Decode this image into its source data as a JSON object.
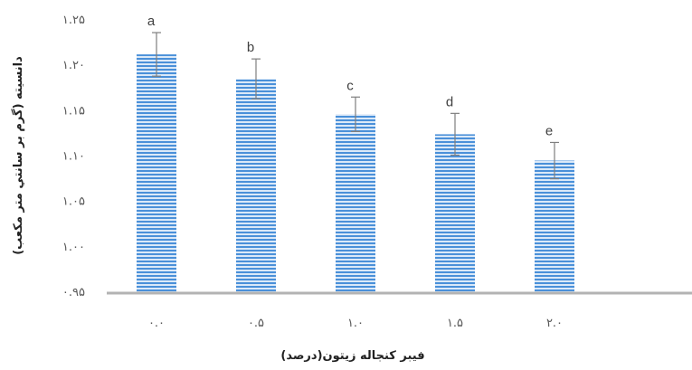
{
  "chart_data": {
    "type": "bar",
    "title": "",
    "xlabel": "فيبر كنجاله زيتون(درصد)",
    "ylabel": "دانسيته (گرم بر سانتي متر مكعب)",
    "categories": [
      "۰.۰",
      "۰.۵",
      "۱.۰",
      "۱.۵",
      "۲.۰"
    ],
    "values": [
      1.212,
      1.185,
      1.146,
      1.124,
      1.095
    ],
    "errors": [
      0.024,
      0.022,
      0.019,
      0.023,
      0.02
    ],
    "data_labels": [
      "a",
      "b",
      "c",
      "d",
      "e"
    ],
    "ylim": [
      0.95,
      1.25
    ],
    "yticks": [
      0.95,
      1.0,
      1.05,
      1.1,
      1.15,
      1.2,
      1.25
    ],
    "ytick_labels": [
      "۰.۹۵",
      "۱.۰۰",
      "۱.۰۵",
      "۱.۱۰",
      "۱.۱۵",
      "۱.۲۰",
      "۱.۲۵"
    ],
    "grid": false,
    "legend": "none",
    "colors": {
      "bar": "#4a90d9",
      "bar_light": "#dbe9f8",
      "axis": "#b3b3b3",
      "error": "#7f7f7f"
    }
  }
}
